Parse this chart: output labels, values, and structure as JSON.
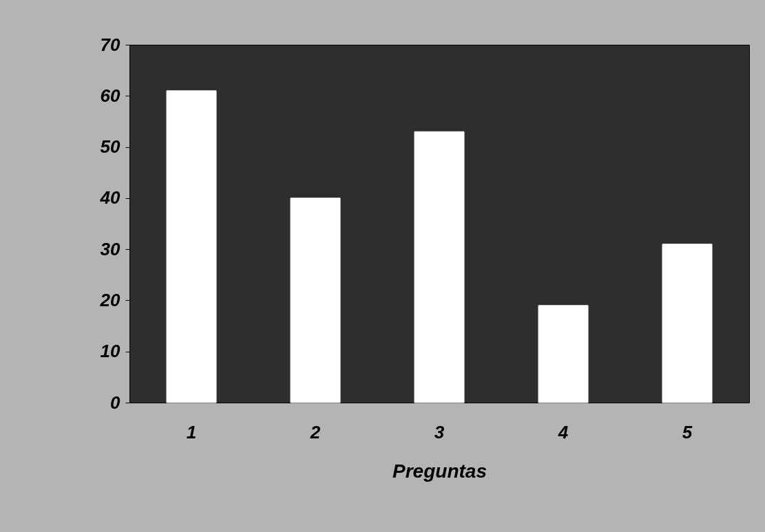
{
  "chart_data": {
    "type": "bar",
    "xlabel": "Preguntas",
    "categories": [
      "1",
      "2",
      "3",
      "4",
      "5"
    ],
    "values": [
      61,
      40,
      53,
      19,
      31
    ],
    "color": "#ffffff",
    "ylim": [
      0,
      70
    ],
    "yticks": [
      0,
      10,
      20,
      30,
      40,
      50,
      60,
      70
    ],
    "grid": false
  }
}
